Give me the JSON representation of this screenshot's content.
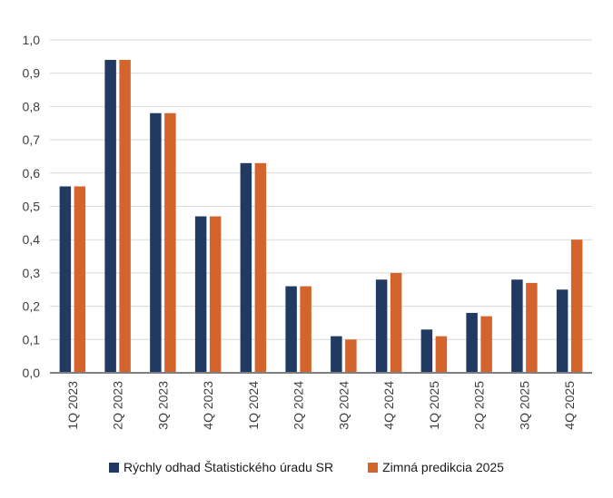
{
  "chart_data": {
    "type": "bar",
    "title": "",
    "xlabel": "",
    "ylabel": "",
    "categories": [
      "1Q 2023",
      "2Q 2023",
      "3Q 2023",
      "4Q 2023",
      "1Q 2024",
      "2Q 2024",
      "3Q 2024",
      "4Q 2024",
      "1Q 2025",
      "2Q 2025",
      "3Q 2025",
      "4Q 2025"
    ],
    "series": [
      {
        "name": "Rýchly odhad Štatistického úradu SR",
        "color": "#203a61",
        "values": [
          0.56,
          0.94,
          0.78,
          0.47,
          0.63,
          0.26,
          0.11,
          0.28,
          0.13,
          0.18,
          0.28,
          0.25
        ]
      },
      {
        "name": "Zimná predikcia 2025",
        "color": "#d3652c",
        "values": [
          0.56,
          0.94,
          0.78,
          0.47,
          0.63,
          0.26,
          0.1,
          0.3,
          0.11,
          0.17,
          0.27,
          0.4
        ]
      }
    ],
    "ylim": [
      0.0,
      1.0
    ],
    "ytick_step": 0.1,
    "ytick_labels": [
      "0,0",
      "0,1",
      "0,2",
      "0,3",
      "0,4",
      "0,5",
      "0,6",
      "0,7",
      "0,8",
      "0,9",
      "1,0"
    ],
    "grid": true,
    "legend_position": "bottom",
    "x_label_rotation": -90
  },
  "colors": {
    "background": "#ffffff",
    "gridline": "#d9d9d9",
    "axis_line": "#7f7f7f",
    "tick_text": "#3f3f3f",
    "legend_text": "#1a1a1a"
  }
}
